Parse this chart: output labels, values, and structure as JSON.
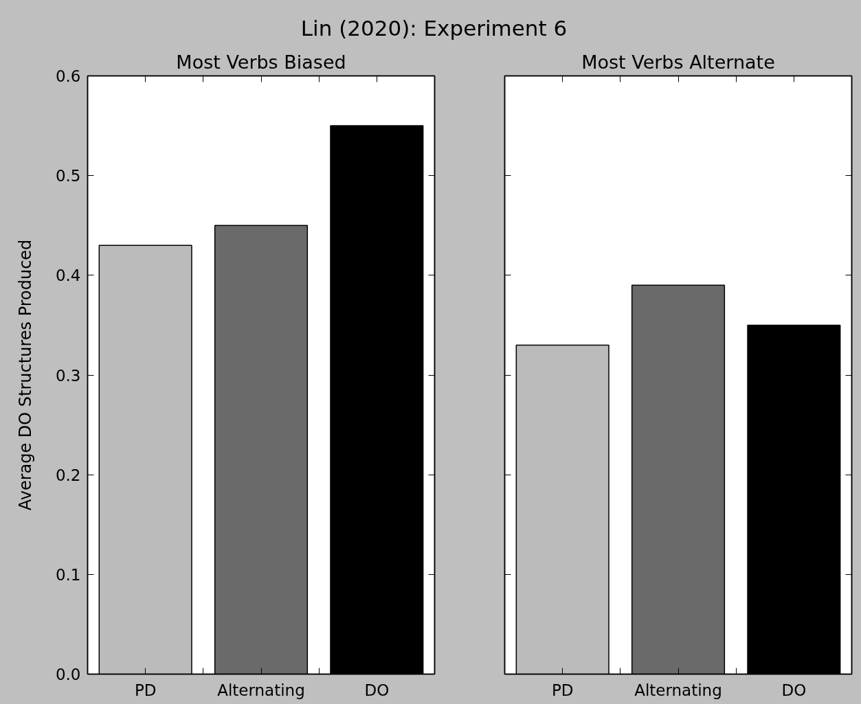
{
  "chart_data": [
    {
      "type": "bar",
      "title": "Lin (2020): Experiment 6",
      "subtitle": "Most Verbs Biased",
      "ylabel": "Average DO Structures Produced",
      "categories": [
        "PD",
        "Alternating",
        "DO"
      ],
      "values": [
        0.43,
        0.45,
        0.55
      ],
      "colors": [
        "#bbbbbb",
        "#6a6a6a",
        "#000000"
      ],
      "ylim": [
        0,
        0.6
      ],
      "yticks": [
        {
          "value": 0,
          "label": "0.0"
        },
        0.1,
        0.2,
        0.3,
        0.4,
        0.5,
        0.6
      ]
    },
    {
      "type": "bar",
      "subtitle": "Most Verbs Alternate",
      "categories": [
        "PD",
        "Alternating",
        "DO"
      ],
      "values": [
        0.33,
        0.39,
        0.35
      ],
      "colors": [
        "#bbbbbb",
        "#6a6a6a",
        "#000000"
      ],
      "ylim": [
        0,
        0.6
      ],
      "yticks": [
        0,
        0.1,
        0.2,
        0.3,
        0.4,
        0.5,
        0.6
      ],
      "tick_labels": "x"
    }
  ]
}
